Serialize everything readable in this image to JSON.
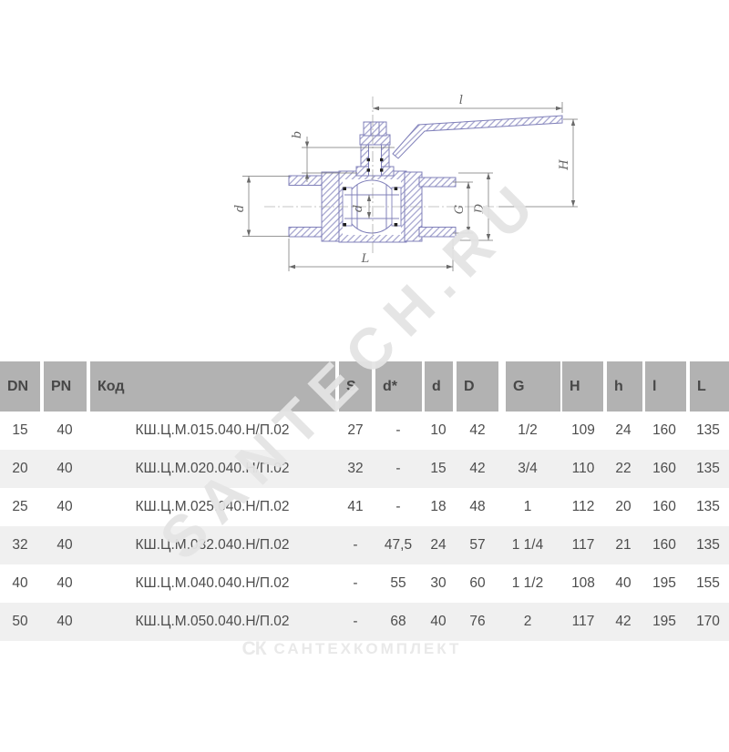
{
  "drawing": {
    "labels": {
      "handle_length": "l",
      "stem_height": "b",
      "height": "H",
      "bore": "d",
      "ball_bore": "d",
      "thread_size": "G",
      "outer_diameter": "D",
      "body_length": "L"
    }
  },
  "table": {
    "headers": [
      "DN",
      "PN",
      "Код",
      "S",
      "d*",
      "d",
      "D",
      "G",
      "H",
      "h",
      "l",
      "L"
    ],
    "rows": [
      [
        "15",
        "40",
        "КШ.Ц.М.015.040.Н/П.02",
        "27",
        "-",
        "10",
        "42",
        "1/2",
        "109",
        "24",
        "160",
        "135"
      ],
      [
        "20",
        "40",
        "КШ.Ц.М.020.040.Н/П.02",
        "32",
        "-",
        "15",
        "42",
        "3/4",
        "110",
        "22",
        "160",
        "135"
      ],
      [
        "25",
        "40",
        "КШ.Ц.М.025.040.Н/П.02",
        "41",
        "-",
        "18",
        "48",
        "1",
        "112",
        "20",
        "160",
        "135"
      ],
      [
        "32",
        "40",
        "КШ.Ц.М.032.040.Н/П.02",
        "-",
        "47,5",
        "24",
        "57",
        "1 1/4",
        "117",
        "21",
        "160",
        "135"
      ],
      [
        "40",
        "40",
        "КШ.Ц.М.040.040.Н/П.02",
        "-",
        "55",
        "30",
        "60",
        "1 1/2",
        "108",
        "40",
        "195",
        "155"
      ],
      [
        "50",
        "40",
        "КШ.Ц.М.050.040.Н/П.02",
        "-",
        "68",
        "40",
        "76",
        "2",
        "117",
        "42",
        "195",
        "170"
      ]
    ]
  },
  "watermarks": {
    "diagonal": "SANTECH.RU",
    "bottom_logo": "СК",
    "bottom_text": "САНТЕХКОМПЛЕКТ"
  },
  "colors": {
    "header_bg": "#b2b2b2",
    "row_alt_bg": "#f0f0f0",
    "table_text": "#4d4d4d",
    "drawing_outline": "#8080ba",
    "hatch": "#a0a0cc",
    "dimension_line": "#757575",
    "watermark": "#e7e7e7"
  }
}
